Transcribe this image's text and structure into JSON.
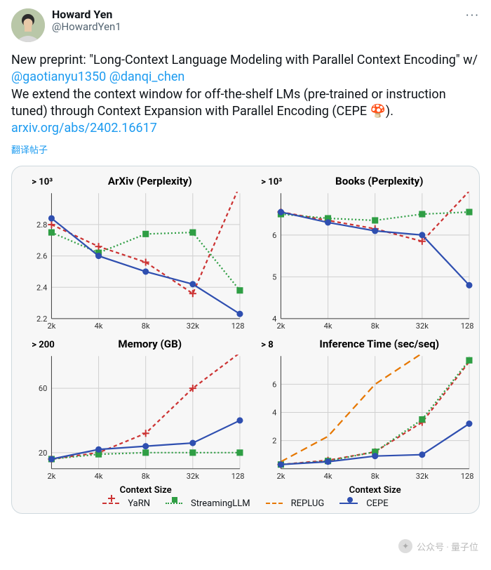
{
  "author": {
    "display_name": "Howard Yen",
    "handle": "@HowardYen1",
    "avatar_bg": "#b9c7a8"
  },
  "more_label": "···",
  "body": {
    "line1": "New preprint: \"Long-Context Language Modeling with Parallel Context Encoding\" w/ ",
    "mention1": "@gaotianyu1350",
    "mention2": "@danqi_chen",
    "line2": "We extend the context window for off-the-shelf LMs (pre-trained or instruction tuned) through Context Expansion with Parallel Encoding (CEPE 🍄).",
    "link": "arxiv.org/abs/2402.16617"
  },
  "translate_label": "翻译帖子",
  "watermark": "公众号 · 量子位",
  "chart_style": {
    "background": "#f7f7f7",
    "grid_color": "#d0d0d0",
    "axis_color": "#444444",
    "tick_fontsize": 11,
    "title_fontsize": 15,
    "axis_label_fontsize": 13,
    "marker_size": 5,
    "line_width": 2.2,
    "panel_aspect": "320x230",
    "x_categories": [
      "2k",
      "4k",
      "8k",
      "32k",
      "128k"
    ]
  },
  "series": {
    "YaRN": {
      "color": "#cc3333",
      "dash": "5,4",
      "marker": "plus"
    },
    "StreamingLLM": {
      "color": "#2f9e44",
      "dash": "2,3",
      "marker": "square"
    },
    "REPLUG": {
      "color": "#e67700",
      "dash": "10,6",
      "marker": "none"
    },
    "CEPE": {
      "color": "#2f4fb0",
      "dash": "none",
      "marker": "circle"
    }
  },
  "charts": {
    "arxiv": {
      "title": "ArXiv (Perplexity)",
      "overflow_label": "> 10³",
      "ylim": [
        2.2,
        3.0
      ],
      "yticks": [
        2.2,
        2.4,
        2.6,
        2.8
      ],
      "data": {
        "YaRN": [
          2.8,
          2.66,
          2.56,
          2.36,
          3.05
        ],
        "StreamingLLM": [
          2.75,
          2.62,
          2.74,
          2.75,
          2.38
        ],
        "CEPE": [
          2.84,
          2.6,
          2.5,
          2.42,
          2.23
        ]
      }
    },
    "books": {
      "title": "Books (Perplexity)",
      "overflow_label": "> 10³",
      "ylim": [
        4.0,
        7.0
      ],
      "yticks": [
        4,
        5,
        6
      ],
      "data": {
        "YaRN": [
          6.55,
          6.35,
          6.15,
          5.85,
          7.05
        ],
        "StreamingLLM": [
          6.5,
          6.4,
          6.35,
          6.5,
          6.55
        ],
        "CEPE": [
          6.55,
          6.3,
          6.1,
          6.0,
          4.8
        ]
      }
    },
    "memory": {
      "title": "Memory (GB)",
      "overflow_label": "> 200",
      "xlabel": "Context Size",
      "ylim": [
        10,
        80
      ],
      "yticks": [
        20,
        60
      ],
      "break_after": 3,
      "data": {
        "YaRN": [
          16,
          20,
          32,
          60,
          82
        ],
        "StreamingLLM": [
          16,
          19,
          20,
          20,
          20
        ],
        "CEPE": [
          16,
          22,
          24,
          26,
          40
        ]
      }
    },
    "time": {
      "title": "Inference Time (sec/seq)",
      "overflow_label": "> 8",
      "xlabel": "Context Size",
      "ylim": [
        0,
        8
      ],
      "yticks": [
        2,
        4,
        6
      ],
      "break_after": 3,
      "data": {
        "YaRN": [
          0.3,
          0.6,
          1.2,
          3.3,
          7.6
        ],
        "StreamingLLM": [
          0.3,
          0.55,
          1.2,
          3.5,
          7.7
        ],
        "REPLUG": [
          0.5,
          2.3,
          6.0,
          8.2,
          8.2
        ],
        "CEPE": [
          0.3,
          0.5,
          0.9,
          1.0,
          3.2
        ]
      }
    }
  },
  "legend_order": [
    "YaRN",
    "StreamingLLM",
    "REPLUG",
    "CEPE"
  ]
}
